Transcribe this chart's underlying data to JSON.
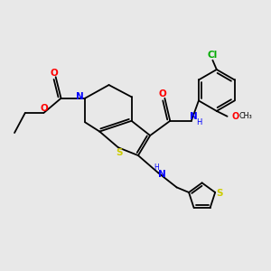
{
  "background_color": "#e8e8e8",
  "bond_color": "#000000",
  "atom_colors": {
    "O": "#ff0000",
    "N": "#0000ff",
    "S": "#cccc00",
    "Cl": "#00aa00",
    "C": "#000000",
    "H": "#555555"
  },
  "figsize": [
    3.0,
    3.0
  ],
  "dpi": 100
}
